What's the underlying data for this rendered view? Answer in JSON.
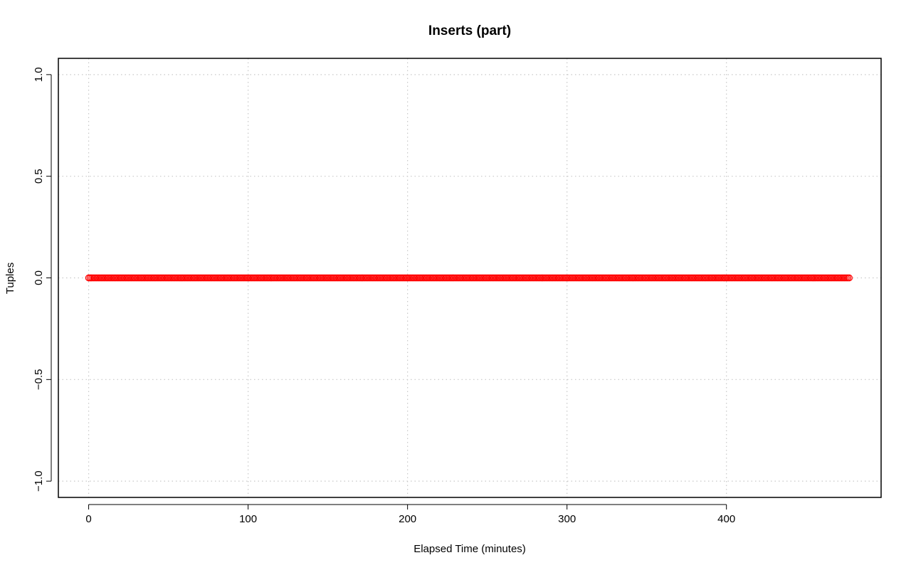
{
  "chart_data": {
    "type": "scatter",
    "title": "Inserts (part)",
    "xlabel": "Elapsed Time (minutes)",
    "ylabel": "Tuples",
    "xlim": [
      -19,
      497
    ],
    "ylim": [
      -1.08,
      1.08
    ],
    "x_ticks": [
      0,
      100,
      200,
      300,
      400
    ],
    "x_tick_labels": [
      "0",
      "100",
      "200",
      "300",
      "400"
    ],
    "y_ticks": [
      -1.0,
      -0.5,
      0.0,
      0.5,
      1.0
    ],
    "y_tick_labels": [
      "−1.0",
      "−0.5",
      "0.0",
      "0.5",
      "1.0"
    ],
    "grid": true,
    "legend": "none",
    "series": [
      {
        "marker": "open-circle",
        "color": "#ff0000",
        "x_start": 0,
        "x_end": 477,
        "x_step": 1,
        "y": 0
      }
    ]
  }
}
